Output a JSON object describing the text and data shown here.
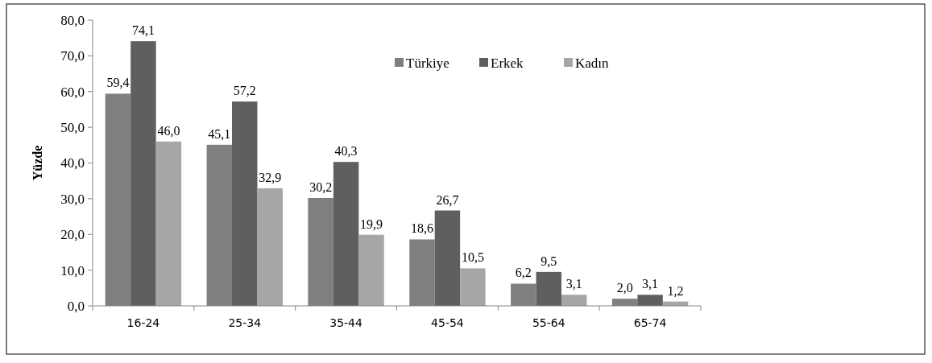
{
  "chart_data": {
    "type": "bar",
    "ylabel": "Yüzde",
    "categories": [
      "16-24",
      "25-34",
      "35-44",
      "45-54",
      "55-64",
      "65-74"
    ],
    "series": [
      {
        "name": "Türkiye",
        "color": "#7f7f7f",
        "values": [
          59.4,
          45.1,
          30.2,
          18.6,
          6.2,
          2.0
        ],
        "value_labels": [
          "59,4",
          "45,1",
          "30,2",
          "18,6",
          "6,2",
          "2,0"
        ]
      },
      {
        "name": "Erkek",
        "color": "#5f5f5f",
        "values": [
          74.1,
          57.2,
          40.3,
          26.7,
          9.5,
          3.1
        ],
        "value_labels": [
          "74,1",
          "57,2",
          "40,3",
          "26,7",
          "9,5",
          "3,1"
        ]
      },
      {
        "name": "Kadın",
        "color": "#a6a6a6",
        "values": [
          46.0,
          32.9,
          19.9,
          10.5,
          3.1,
          1.2
        ],
        "value_labels": [
          "46,0",
          "32,9",
          "19,9",
          "10,5",
          "3,1",
          "1,2"
        ]
      }
    ],
    "ylim": [
      0,
      80
    ],
    "yticks": [
      {
        "value": 0,
        "label": "0,0"
      },
      {
        "value": 10,
        "label": "10,0"
      },
      {
        "value": 20,
        "label": "20,0"
      },
      {
        "value": 30,
        "label": "30,0"
      },
      {
        "value": 40,
        "label": "40,0"
      },
      {
        "value": 50,
        "label": "50,0"
      },
      {
        "value": 60,
        "label": "60,0"
      },
      {
        "value": 70,
        "label": "70,0"
      },
      {
        "value": 80,
        "label": "80,0"
      }
    ],
    "legend": "top"
  }
}
